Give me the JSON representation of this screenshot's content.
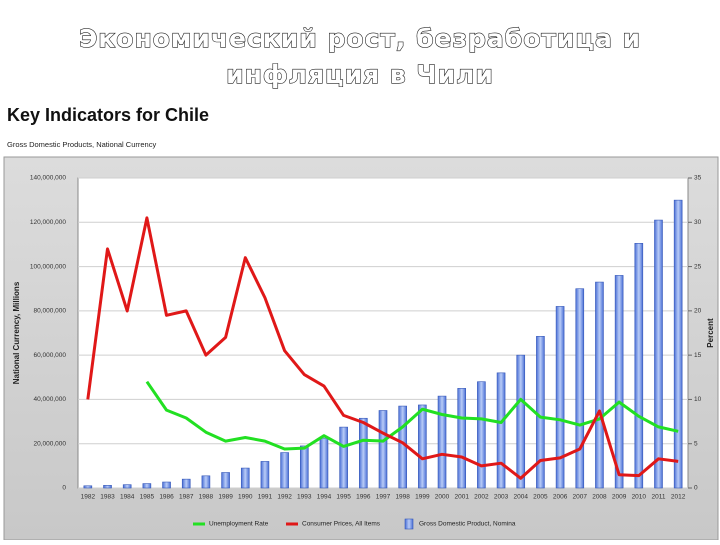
{
  "slide": {
    "title": [
      "Экономический рост, безработица и",
      "инфляция в Чили"
    ]
  },
  "chart_data": {
    "type": "bar",
    "title": "Key Indicators for Chile",
    "subtitle": "Gross Domestic Products, National Currency",
    "y_label": "National Currency, Millions",
    "y2_label": "Percent",
    "categories": [
      "1982",
      "1983",
      "1984",
      "1985",
      "1986",
      "1987",
      "1988",
      "1989",
      "1990",
      "1991",
      "1992",
      "1993",
      "1994",
      "1995",
      "1996",
      "1997",
      "1998",
      "1999",
      "2000",
      "2001",
      "2002",
      "2003",
      "2004",
      "2005",
      "2006",
      "2007",
      "2008",
      "2009",
      "2010",
      "2011",
      "2012"
    ],
    "ylim": [
      0,
      140000000
    ],
    "yticks": [
      0,
      {
        "value": 20000000,
        "label": "20,000,000"
      },
      {
        "value": 40000000,
        "label": "40,000,000"
      },
      {
        "value": 60000000,
        "label": "60,000,000"
      },
      {
        "value": 80000000,
        "label": "80,000,000"
      },
      {
        "value": 100000000,
        "label": "100,000,000"
      },
      {
        "value": 120000000,
        "label": "120,000,000"
      },
      {
        "value": 140000000,
        "label": "140,000,000"
      }
    ],
    "y2lim": [
      0,
      35
    ],
    "y2ticks": [
      0,
      5,
      10,
      15,
      20,
      25,
      30,
      35
    ],
    "grid": true,
    "legend": "bottom",
    "series": [
      {
        "name": "Unemployment Rate",
        "type": "line",
        "axis": "y2",
        "color": "#22e022",
        "values": [
          null,
          null,
          null,
          12,
          8.8,
          7.9,
          6.3,
          5.3,
          5.7,
          5.3,
          4.4,
          4.5,
          5.9,
          4.7,
          5.4,
          5.3,
          6.9,
          8.9,
          8.3,
          7.9,
          7.8,
          7.4,
          10,
          8,
          7.7,
          7.1,
          7.8,
          9.7,
          8.1,
          6.9,
          6.4
        ]
      },
      {
        "name": "Consumer Prices, All Items",
        "type": "line",
        "axis": "y2",
        "color": "#e01818",
        "values": [
          10,
          27,
          20,
          30.5,
          19.5,
          20,
          15,
          17,
          26,
          21.5,
          15.5,
          12.8,
          11.5,
          8.2,
          7.4,
          6.2,
          5.1,
          3.3,
          3.8,
          3.5,
          2.5,
          2.8,
          1.1,
          3.1,
          3.4,
          4.4,
          8.7,
          1.5,
          1.4,
          3.3,
          3.0
        ]
      },
      {
        "name": "Gross Domestic Product, Nomina",
        "type": "bar",
        "color": "#7f9ee8",
        "values": [
          1000000,
          1200000,
          1500000,
          2000000,
          2700000,
          4000000,
          5500000,
          7000000,
          9000000,
          12000000,
          16000000,
          19000000,
          22500000,
          27500000,
          31500000,
          35000000,
          37000000,
          37500000,
          41500000,
          45000000,
          48000000,
          52000000,
          60000000,
          68500000,
          82000000,
          90000000,
          93000000,
          96000000,
          110500000,
          121000000,
          130000000
        ]
      }
    ]
  }
}
